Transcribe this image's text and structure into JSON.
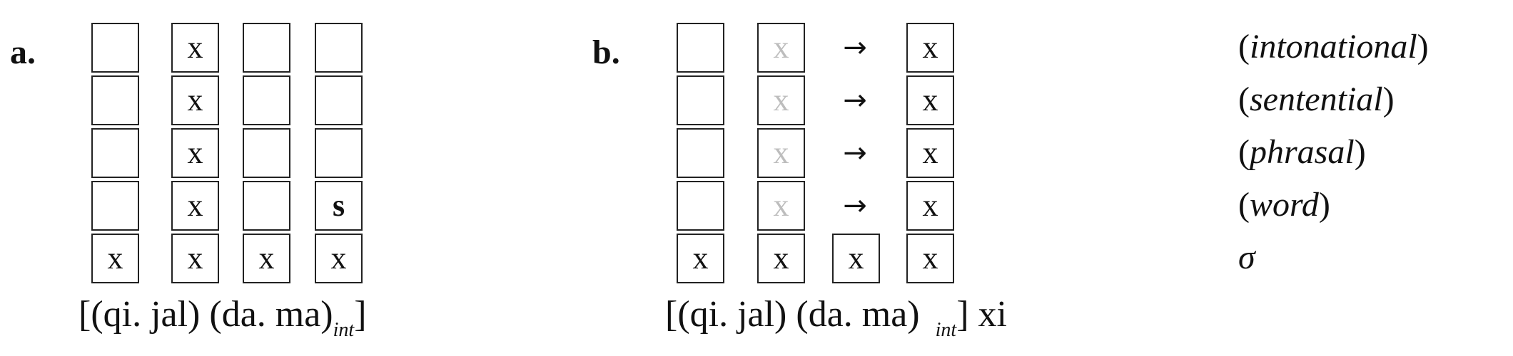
{
  "panel_a": {
    "label": "a.",
    "columns": [
      [
        "",
        "",
        "",
        "",
        "x"
      ],
      [
        "x",
        "x",
        "x",
        "x",
        "x"
      ],
      [
        "",
        "",
        "",
        "",
        "x"
      ],
      [
        "",
        "",
        "",
        "s",
        "x"
      ]
    ],
    "bracket_open": "[(qi. jal) (da. ma)",
    "subscript": "int",
    "bracket_close": "]"
  },
  "panel_b": {
    "label": "b.",
    "col1": [
      "",
      "",
      "",
      "",
      "x"
    ],
    "col2": [
      "x",
      "x",
      "x",
      "x",
      "x"
    ],
    "col3": [
      "x"
    ],
    "arrow": "→",
    "col4": [
      "x",
      "x",
      "x",
      "x",
      "x"
    ],
    "bracket_open": "[(qi. jal) (da. ma)",
    "subscript": "int",
    "bracket_close": "] xi"
  },
  "levels": [
    {
      "open": "(",
      "name": "intonational",
      "close": ")"
    },
    {
      "open": "(",
      "name": "sentential",
      "close": ")"
    },
    {
      "open": "(",
      "name": "phrasal",
      "close": ")"
    },
    {
      "open": "(",
      "name": "word",
      "close": ")"
    },
    {
      "open": "",
      "name": "σ",
      "close": ""
    }
  ]
}
